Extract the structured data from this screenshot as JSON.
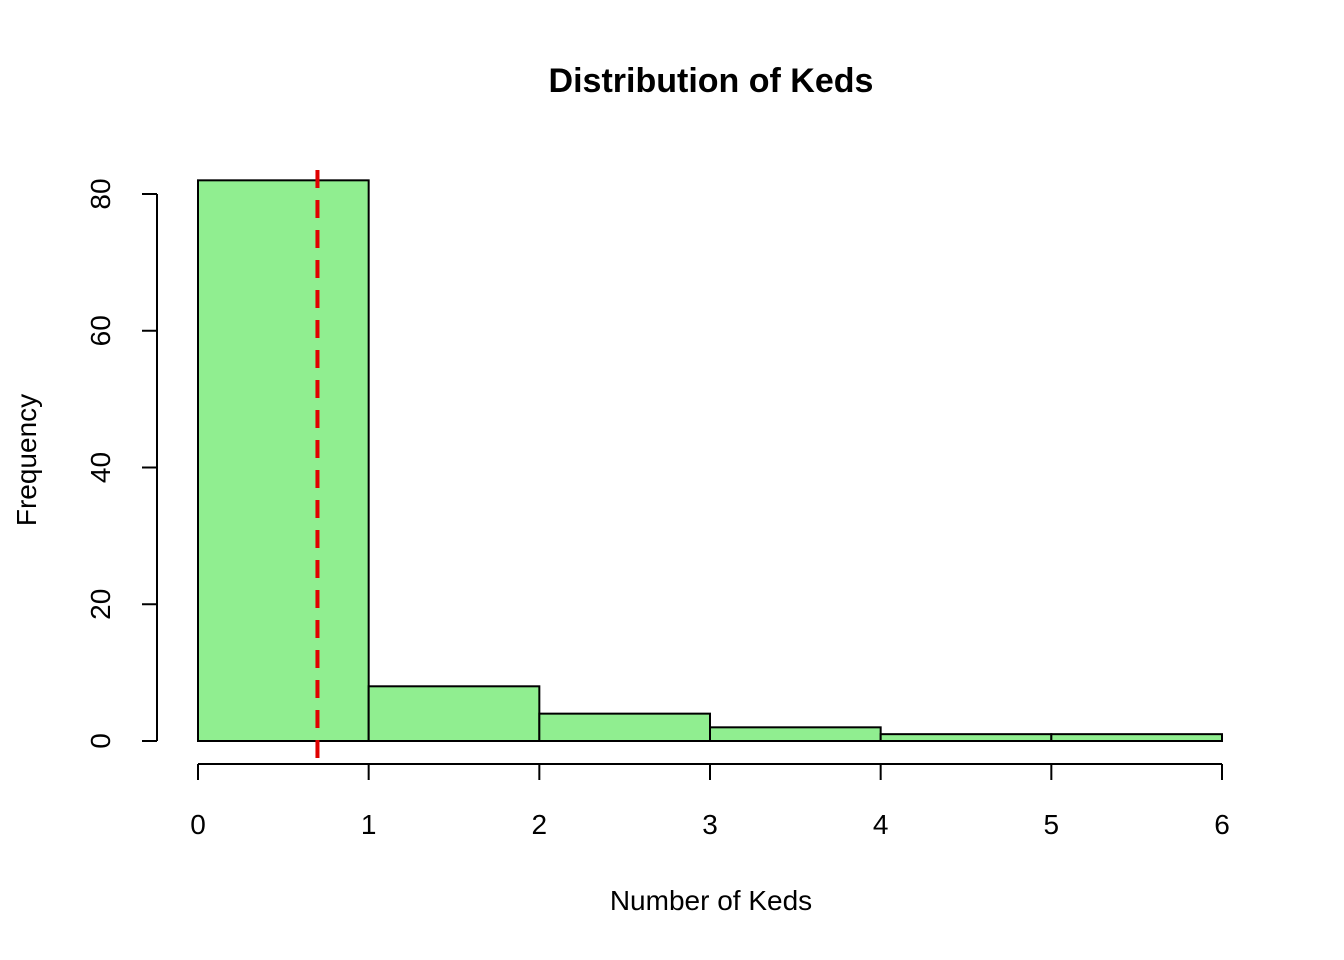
{
  "chart_data": {
    "type": "bar",
    "title": "Distribution of Keds",
    "xlabel": "Number of Keds",
    "ylabel": "Frequency",
    "bins": [
      {
        "x0": 0,
        "x1": 1,
        "value": 82
      },
      {
        "x0": 1,
        "x1": 2,
        "value": 8
      },
      {
        "x0": 2,
        "x1": 3,
        "value": 4
      },
      {
        "x0": 3,
        "x1": 4,
        "value": 2
      },
      {
        "x0": 4,
        "x1": 5,
        "value": 1
      },
      {
        "x0": 5,
        "x1": 6,
        "value": 1
      }
    ],
    "xlim": [
      0,
      6
    ],
    "ylim": [
      0,
      82
    ],
    "x_ticks": [
      0,
      1,
      2,
      3,
      4,
      5,
      6
    ],
    "x_tick_labels": [
      "0",
      "1",
      "2",
      "3",
      "4",
      "5",
      "6"
    ],
    "y_ticks": [
      0,
      20,
      40,
      60,
      80
    ],
    "y_tick_labels": [
      "0",
      "20",
      "40",
      "60",
      "80"
    ],
    "reference_line": {
      "x": 0.7,
      "style": "dashed",
      "color": "#e00000"
    },
    "bar_color": "#90ee90",
    "grid": false
  }
}
